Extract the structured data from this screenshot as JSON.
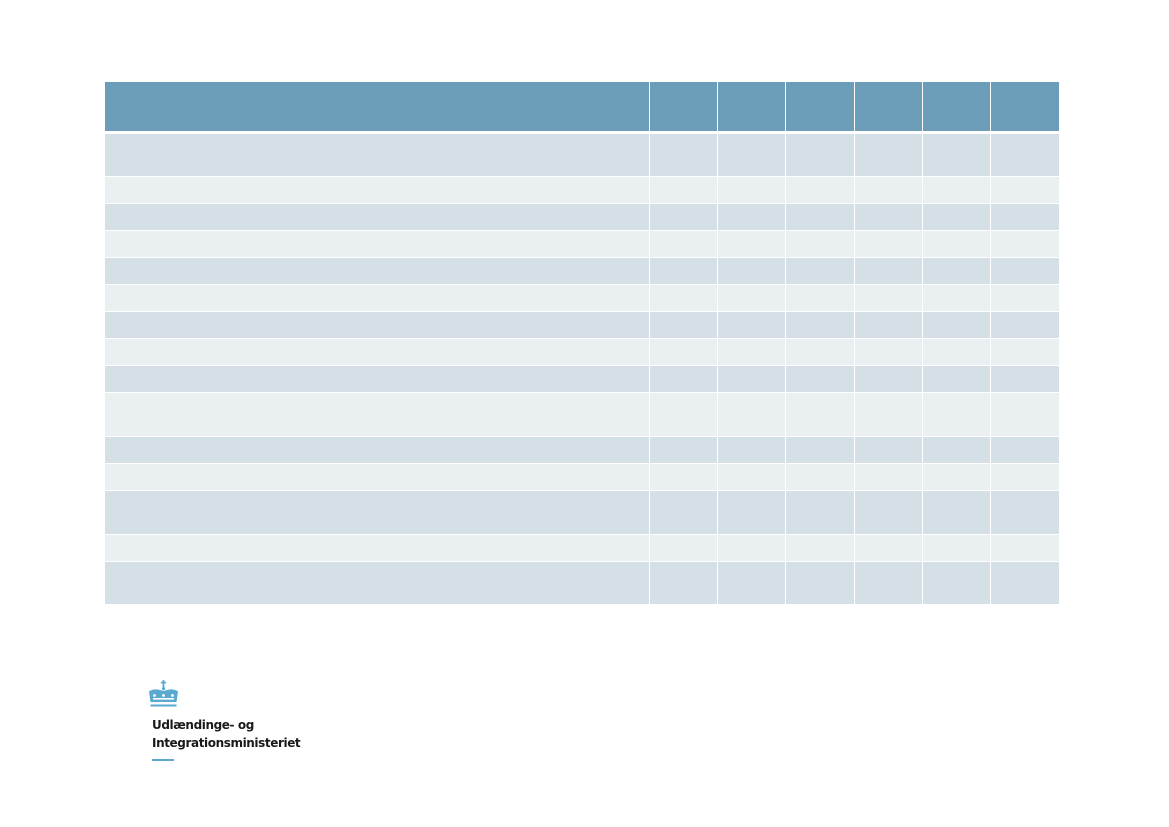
{
  "table": {
    "column_count": 7,
    "rows": [
      {
        "shade": "dark",
        "height": 43
      },
      {
        "shade": "light",
        "height": 27
      },
      {
        "shade": "dark",
        "height": 27
      },
      {
        "shade": "light",
        "height": 27
      },
      {
        "shade": "dark",
        "height": 27
      },
      {
        "shade": "light",
        "height": 27
      },
      {
        "shade": "dark",
        "height": 27
      },
      {
        "shade": "light",
        "height": 27
      },
      {
        "shade": "dark",
        "height": 27
      },
      {
        "shade": "light",
        "height": 44
      },
      {
        "shade": "dark",
        "height": 27
      },
      {
        "shade": "light",
        "height": 27
      },
      {
        "shade": "dark",
        "height": 44
      },
      {
        "shade": "light",
        "height": 27
      },
      {
        "shade": "dark",
        "height": 43
      }
    ],
    "colors": {
      "header": "#6c9db8",
      "row_dark": "#d4dfe6",
      "row_light": "#eaeff2"
    }
  },
  "logo": {
    "icon": "crown-icon",
    "line1": "Udlændinge- og",
    "line2": "Integrationsministeriet",
    "accent_color": "#5aaad0"
  }
}
